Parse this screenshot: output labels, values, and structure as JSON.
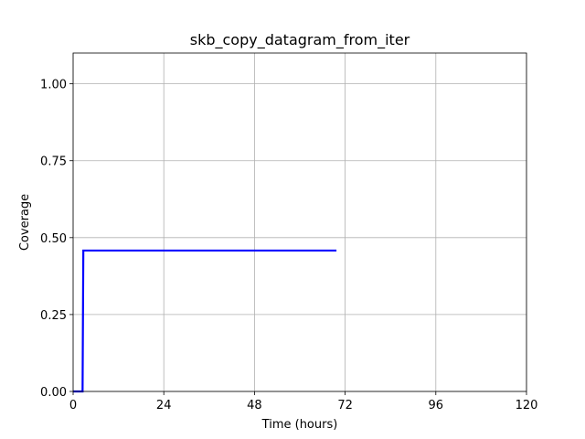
{
  "chart_data": {
    "type": "line",
    "title": "skb_copy_datagram_from_iter",
    "xlabel": "Time (hours)",
    "ylabel": "Coverage",
    "xlim": [
      0,
      120
    ],
    "ylim": [
      0,
      1.1
    ],
    "xticks": [
      0,
      24,
      48,
      72,
      96,
      120
    ],
    "yticks": [
      0.0,
      0.25,
      0.5,
      0.75,
      1.0
    ],
    "xtick_labels": [
      "0",
      "24",
      "48",
      "72",
      "96",
      "120"
    ],
    "ytick_labels": [
      "0.00",
      "0.25",
      "0.50",
      "0.75",
      "1.00"
    ],
    "grid": true,
    "series": [
      {
        "color": "#0000ff",
        "x": [
          0,
          2.5,
          2.7,
          69.7
        ],
        "y": [
          0,
          0,
          0.458,
          0.458
        ]
      }
    ]
  }
}
